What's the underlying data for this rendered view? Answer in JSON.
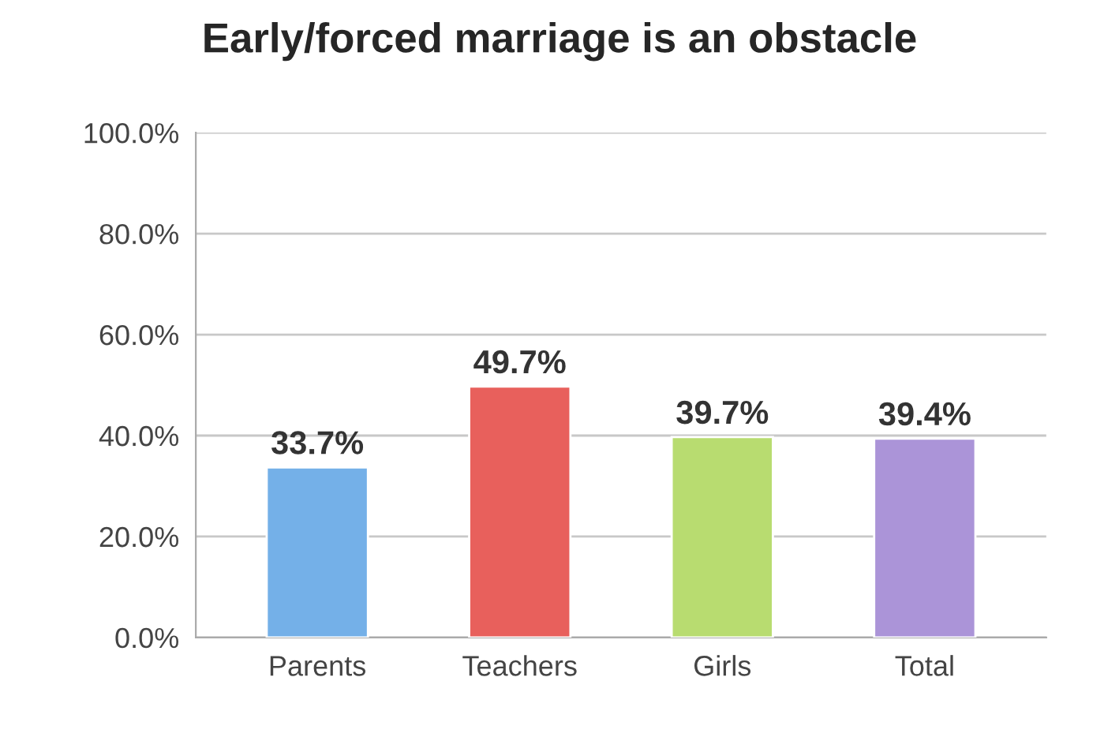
{
  "chart_data": {
    "type": "bar",
    "title": "Early/forced marriage is an obstacle",
    "categories": [
      "Parents",
      "Teachers",
      "Girls",
      "Total"
    ],
    "values": [
      33.7,
      49.7,
      39.7,
      39.4
    ],
    "colors": [
      "#74b0e8",
      "#e8605c",
      "#b8dc70",
      "#ab94d8"
    ],
    "value_labels": [
      "33.7%",
      "49.7%",
      "39.7%",
      "39.4%"
    ],
    "ylim": [
      0,
      100
    ],
    "yticks": [
      {
        "value": 0,
        "label": "0.0%"
      },
      {
        "value": 20,
        "label": "20.0%"
      },
      {
        "value": 40,
        "label": "40.0%"
      },
      {
        "value": 60,
        "label": "60.0%"
      },
      {
        "value": 80,
        "label": "80.0%"
      },
      {
        "value": 100,
        "label": "100.0%"
      }
    ],
    "grid": "y"
  }
}
